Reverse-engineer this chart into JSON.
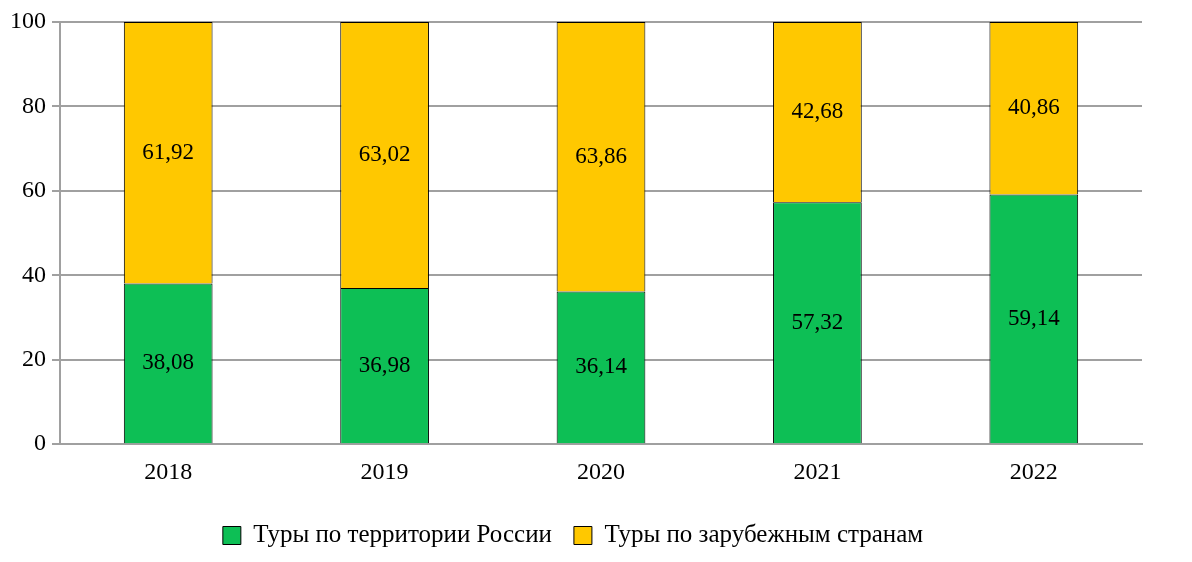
{
  "chart_data": {
    "type": "bar",
    "stacked": true,
    "categories": [
      "2018",
      "2019",
      "2020",
      "2021",
      "2022"
    ],
    "series": [
      {
        "name": "Туры по территории России",
        "color": "#0dbf55",
        "values": [
          38.08,
          36.98,
          36.14,
          57.32,
          59.14
        ],
        "value_labels": [
          "38,08",
          "36,98",
          "36,14",
          "57,32",
          "59,14"
        ]
      },
      {
        "name": "Туры по зарубежным странам",
        "color": "#ffc800",
        "values": [
          61.92,
          63.02,
          63.86,
          42.68,
          40.86
        ],
        "value_labels": [
          "61,92",
          "63,02",
          "63,86",
          "42,68",
          "40,86"
        ]
      }
    ],
    "ylim": [
      0,
      100
    ],
    "yticks": [
      0,
      20,
      40,
      60,
      80,
      100
    ],
    "grid": "y",
    "legend": "bottom"
  }
}
